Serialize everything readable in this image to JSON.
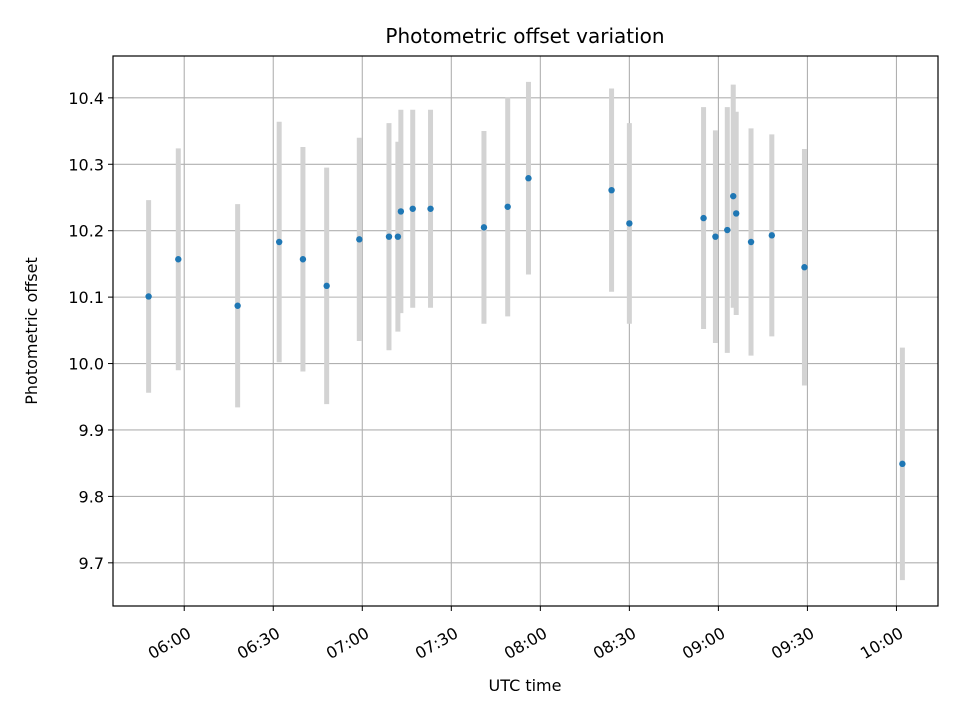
{
  "chart_data": {
    "type": "scatter",
    "title": "Photometric offset variation",
    "xlabel": "UTC time",
    "ylabel": "Photometric offset",
    "x_ticks": [
      "06:00",
      "06:30",
      "07:00",
      "07:30",
      "08:00",
      "08:30",
      "09:00",
      "09:30",
      "10:00"
    ],
    "y_ticks": [
      "9.7",
      "9.8",
      "9.9",
      "10.0",
      "10.1",
      "10.2",
      "10.3",
      "10.4"
    ],
    "xlim": [
      "05:36",
      "10:14"
    ],
    "ylim": [
      9.635,
      10.463
    ],
    "grid": true,
    "colors": {
      "marker": "#1f77b4",
      "errorbar": "#d3d3d3",
      "grid": "#b0b0b0"
    },
    "points": [
      {
        "time": "05:48",
        "y": 10.101,
        "err": 0.145
      },
      {
        "time": "05:58",
        "y": 10.157,
        "err": 0.167
      },
      {
        "time": "06:18",
        "y": 10.087,
        "err": 0.153
      },
      {
        "time": "06:32",
        "y": 10.183,
        "err": 0.181
      },
      {
        "time": "06:40",
        "y": 10.157,
        "err": 0.169
      },
      {
        "time": "06:48",
        "y": 10.117,
        "err": 0.178
      },
      {
        "time": "06:59",
        "y": 10.187,
        "err": 0.153
      },
      {
        "time": "07:09",
        "y": 10.191,
        "err": 0.171
      },
      {
        "time": "07:12",
        "y": 10.191,
        "err": 0.143
      },
      {
        "time": "07:13",
        "y": 10.229,
        "err": 0.153
      },
      {
        "time": "07:17",
        "y": 10.233,
        "err": 0.149
      },
      {
        "time": "07:23",
        "y": 10.233,
        "err": 0.149
      },
      {
        "time": "07:41",
        "y": 10.205,
        "err": 0.145
      },
      {
        "time": "07:49",
        "y": 10.236,
        "err": 0.165
      },
      {
        "time": "07:56",
        "y": 10.279,
        "err": 0.145
      },
      {
        "time": "08:24",
        "y": 10.261,
        "err": 0.153
      },
      {
        "time": "08:30",
        "y": 10.211,
        "err": 0.151
      },
      {
        "time": "08:55",
        "y": 10.219,
        "err": 0.167
      },
      {
        "time": "08:59",
        "y": 10.191,
        "err": 0.16
      },
      {
        "time": "09:03",
        "y": 10.201,
        "err": 0.185
      },
      {
        "time": "09:05",
        "y": 10.252,
        "err": 0.168
      },
      {
        "time": "09:06",
        "y": 10.226,
        "err": 0.153
      },
      {
        "time": "09:11",
        "y": 10.183,
        "err": 0.171
      },
      {
        "time": "09:18",
        "y": 10.193,
        "err": 0.152
      },
      {
        "time": "09:29",
        "y": 10.145,
        "err": 0.178
      },
      {
        "time": "10:02",
        "y": 9.849,
        "err": 0.175
      }
    ]
  }
}
